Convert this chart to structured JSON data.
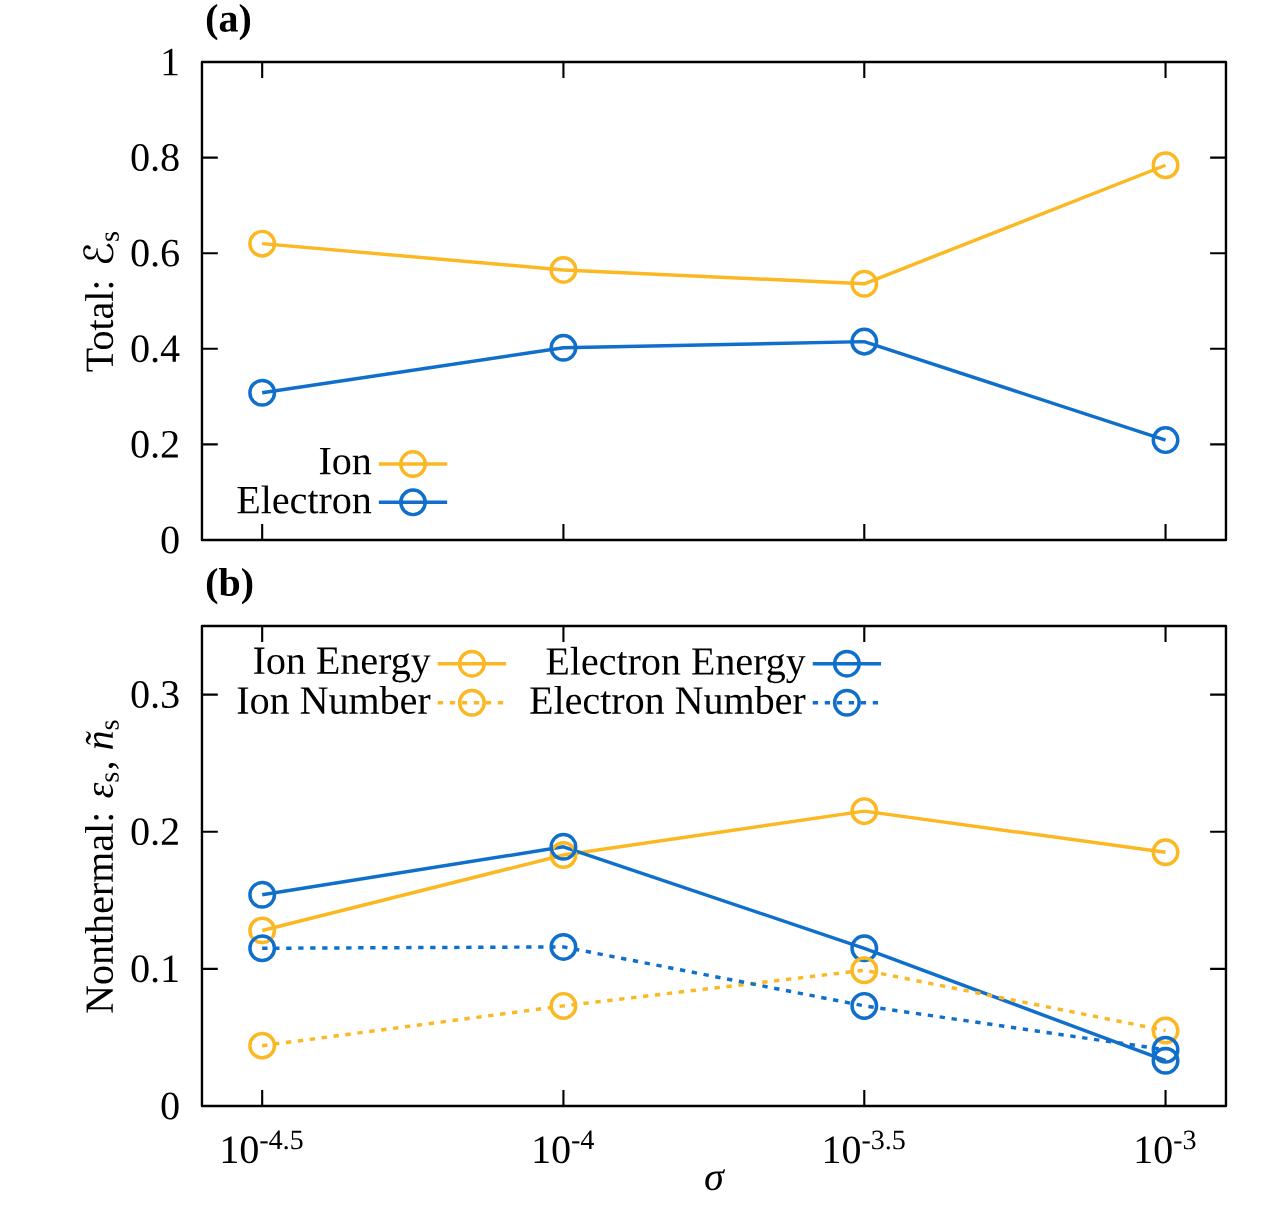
{
  "chart_data": [
    {
      "type": "line",
      "title": "(a)",
      "ylabel": "Total: ℰ$_{s}$",
      "log": "x",
      "x": [
        3.16e-05,
        0.0001,
        0.000316,
        0.001
      ],
      "xlim": [
        2.51e-05,
        0.00126
      ],
      "xticks": [
        {
          "value": 3.16e-05,
          "label": null
        },
        {
          "value": 0.0001,
          "label": null
        },
        {
          "value": 0.000316,
          "label": null
        },
        {
          "value": 0.001,
          "label": null
        }
      ],
      "ylim": [
        0,
        1
      ],
      "yticks": [
        0,
        0.2,
        0.4,
        0.6,
        0.8,
        1
      ],
      "tick_labels": "y",
      "marker": "circle",
      "legend": "bottom left",
      "series": [
        {
          "name": "Ion",
          "color": "#fbb823",
          "values": [
            0.62,
            0.565,
            0.536,
            0.784
          ]
        },
        {
          "name": "Electron",
          "color": "#0f6fcb",
          "values": [
            0.308,
            0.402,
            0.415,
            0.209
          ]
        }
      ]
    },
    {
      "type": "line",
      "title": "(b)",
      "ylabel": "Nonthermal: *ε*$_{s}$, *ñ*$_{s}$",
      "xlabel": "σ",
      "log": "x",
      "x": [
        3.16e-05,
        0.0001,
        0.000316,
        0.001
      ],
      "xlim": [
        2.51e-05,
        0.00126
      ],
      "xticks": [
        {
          "value": 3.16e-05,
          "label": "10$^{-4.5}$"
        },
        {
          "value": 0.0001,
          "label": "10$^{-4}$"
        },
        {
          "value": 0.000316,
          "label": "10$^{-3.5}$"
        },
        {
          "value": 0.001,
          "label": "10$^{-3}$"
        }
      ],
      "ylim": [
        0,
        0.35
      ],
      "yticks": [
        0,
        0.1,
        0.2,
        0.3
      ],
      "marker": "circle",
      "legend": "top left",
      "series": [
        {
          "name": "Ion Energy",
          "color": "#fbb823",
          "line_style": "solid",
          "values": [
            0.128,
            0.183,
            0.215,
            0.185
          ]
        },
        {
          "name": "Electron Energy",
          "color": "#0f6fcb",
          "line_style": "solid",
          "values": [
            0.154,
            0.189,
            0.115,
            0.033
          ]
        },
        {
          "name": "Ion Number",
          "color": "#fbb823",
          "line_style": "dotted",
          "values": [
            0.044,
            0.073,
            0.099,
            0.055
          ]
        },
        {
          "name": "Electron Number",
          "color": "#0f6fcb",
          "line_style": "dotted",
          "values": [
            0.115,
            0.116,
            0.073,
            0.041
          ]
        }
      ]
    }
  ]
}
